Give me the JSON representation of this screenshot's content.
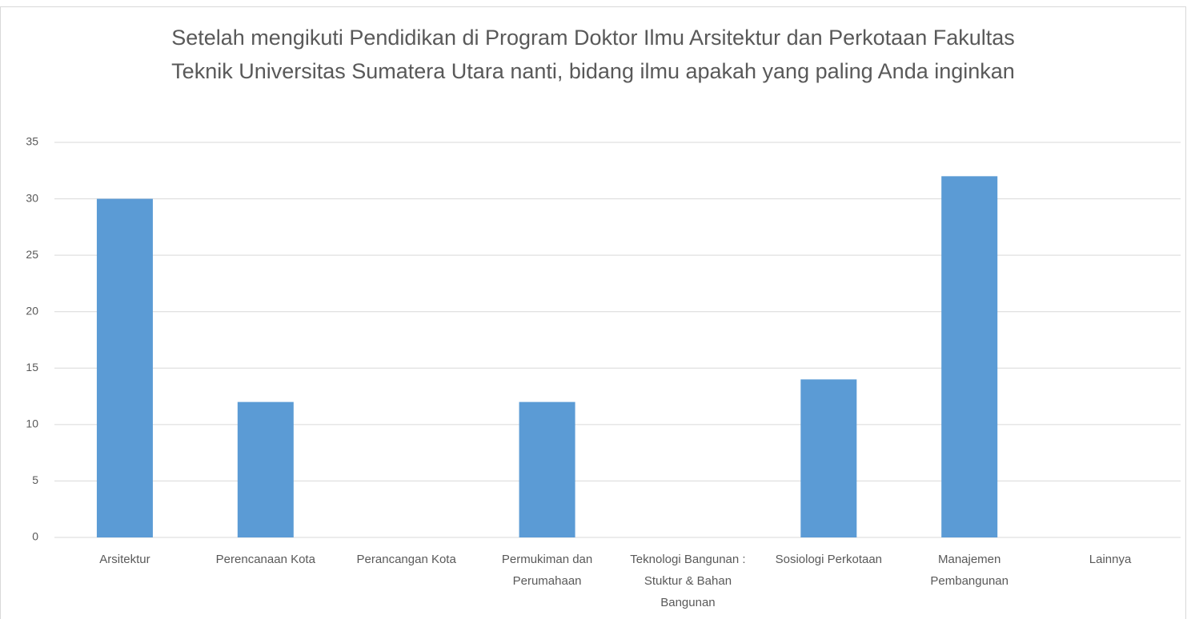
{
  "chart_data": {
    "type": "bar",
    "title": "Setelah mengikuti Pendidikan di Program Doktor Ilmu Arsitektur dan Perkotaan Fakultas Teknik Universitas Sumatera Utara nanti, bidang ilmu apakah yang paling Anda inginkan",
    "categories": [
      "Arsitektur",
      "Perencanaan Kota",
      "Perancangan Kota",
      "Permukiman dan Perumahaan",
      "Teknologi Bangunan : Stuktur & Bahan Bangunan",
      "Sosiologi Perkotaan",
      "Manajemen Pembangunan",
      "Lainnya"
    ],
    "values": [
      30,
      12,
      0,
      12,
      0,
      14,
      32,
      0
    ],
    "color": "#5b9bd5",
    "ylim": [
      0,
      35
    ],
    "yticks": [
      0,
      5,
      10,
      15,
      20,
      25,
      30,
      35
    ],
    "grid": true
  }
}
